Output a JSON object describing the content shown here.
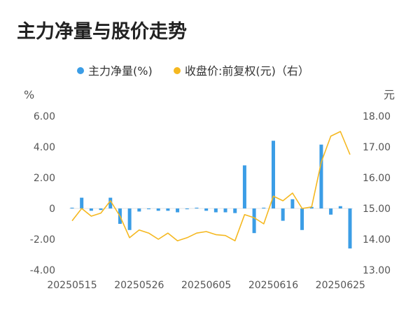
{
  "chart_data": {
    "type": "bar+line",
    "title": "主力净量与股价走势",
    "legend": [
      {
        "label": "主力净量(%)",
        "color": "#3b9de6",
        "marker": "dot"
      },
      {
        "label": "收盘价:前复权(元)（右）",
        "color": "#f5b820",
        "marker": "dot"
      }
    ],
    "left_axis": {
      "unit": "%",
      "ticks": [
        "6.00",
        "4.00",
        "2.00",
        "0",
        "-2.00",
        "-4.00"
      ],
      "range": [
        -4,
        6
      ]
    },
    "right_axis": {
      "unit": "元",
      "ticks": [
        "18.00",
        "17.00",
        "16.00",
        "15.00",
        "14.00",
        "13.00"
      ],
      "range": [
        13,
        18
      ]
    },
    "x_tick_labels": [
      "20250515",
      "20250526",
      "20250605",
      "20250616",
      "20250625"
    ],
    "x_tick_indices": [
      0,
      7,
      14,
      21,
      28
    ],
    "dates": [
      "20250515",
      "20250516",
      "20250519",
      "20250520",
      "20250521",
      "20250522",
      "20250523",
      "20250526",
      "20250527",
      "20250528",
      "20250529",
      "20250530",
      "20250603",
      "20250604",
      "20250605",
      "20250606",
      "20250609",
      "20250610",
      "20250611",
      "20250612",
      "20250613",
      "20250616",
      "20250617",
      "20250618",
      "20250619",
      "20250620",
      "20250623",
      "20250624",
      "20250625",
      "20250626"
    ],
    "series": [
      {
        "name": "主力净量(%)",
        "kind": "bar",
        "axis": "left",
        "color": "#3b9de6",
        "values": [
          0.05,
          0.7,
          -0.15,
          -0.1,
          0.7,
          -1.0,
          -1.4,
          -0.2,
          -0.05,
          -0.15,
          -0.15,
          -0.25,
          -0.05,
          0.05,
          -0.15,
          -0.25,
          -0.25,
          -0.3,
          2.8,
          -1.6,
          0.05,
          4.4,
          -0.8,
          0.6,
          -1.4,
          0.1,
          4.15,
          -0.4,
          0.15,
          -2.6
        ]
      },
      {
        "name": "收盘价:前复权(元)（右）",
        "kind": "line",
        "axis": "right",
        "color": "#f5b820",
        "values": [
          14.6,
          15.0,
          14.75,
          14.85,
          15.25,
          14.75,
          14.05,
          14.3,
          14.2,
          14.0,
          14.2,
          13.95,
          14.05,
          14.2,
          14.25,
          14.15,
          14.12,
          13.95,
          14.8,
          14.7,
          14.5,
          15.4,
          15.25,
          15.5,
          15.0,
          15.05,
          16.5,
          17.35,
          17.5,
          16.75
        ]
      }
    ]
  }
}
